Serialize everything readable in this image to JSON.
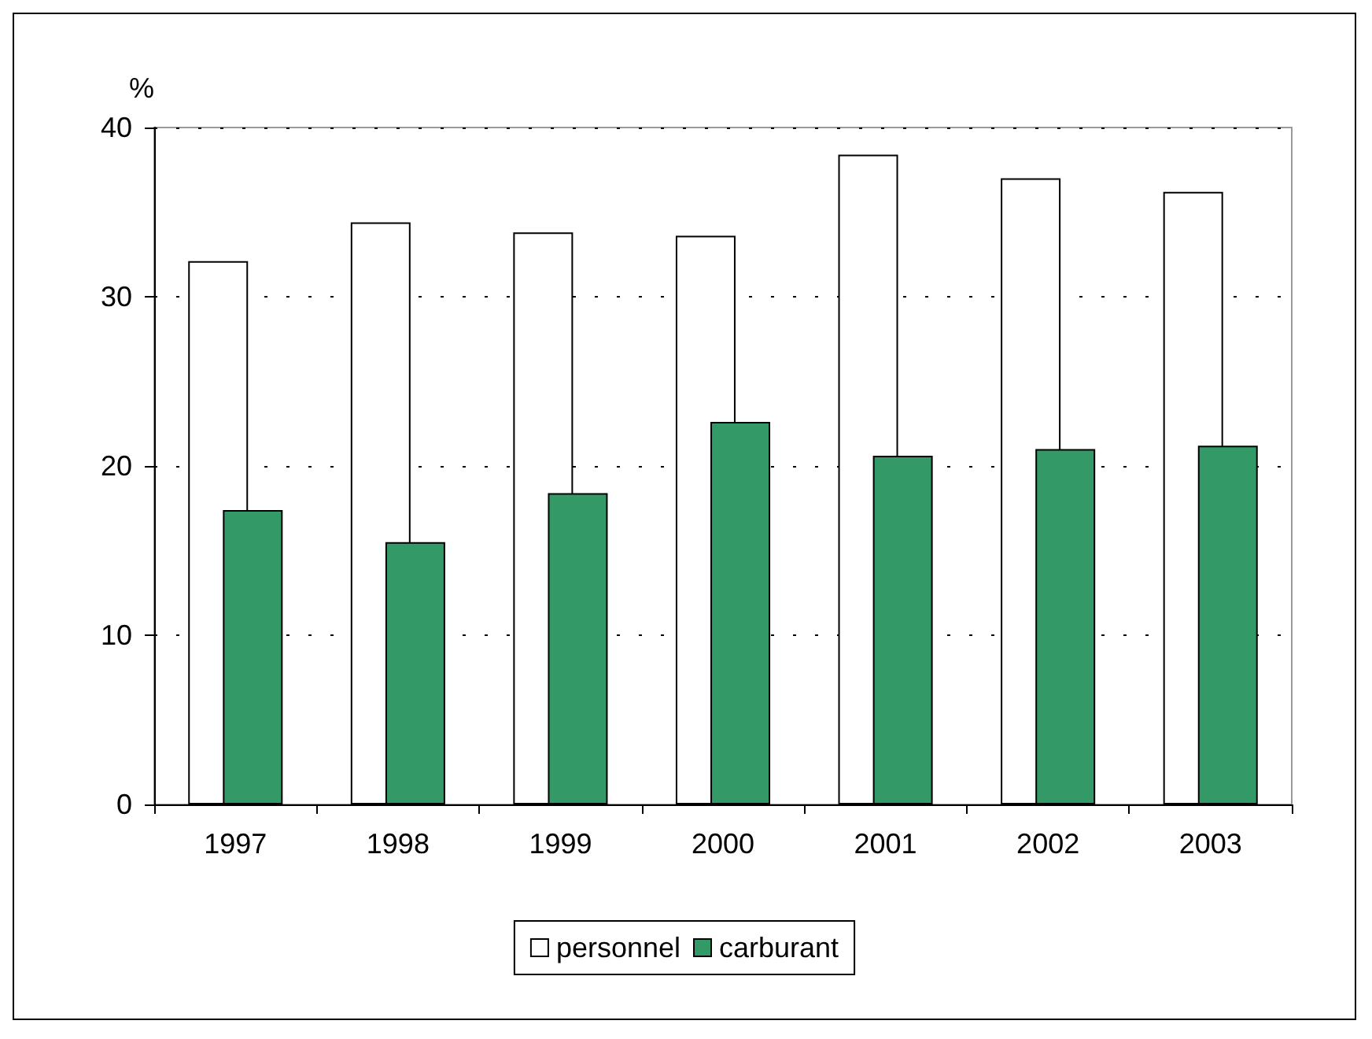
{
  "chart_data": {
    "type": "bar",
    "ylabel": "%",
    "categories": [
      "1997",
      "1998",
      "1999",
      "2000",
      "2001",
      "2002",
      "2003"
    ],
    "series": [
      {
        "name": "personnel",
        "color": "#ffffff",
        "values": [
          32.1,
          34.4,
          33.8,
          33.6,
          38.4,
          37.0,
          36.2
        ]
      },
      {
        "name": "carburant",
        "color": "#339966",
        "values": [
          17.4,
          15.5,
          18.4,
          22.6,
          20.6,
          21.0,
          21.2
        ]
      }
    ],
    "ylim": [
      0,
      40
    ],
    "yticks": [
      0,
      10,
      20,
      30,
      40
    ],
    "grid": "y",
    "legend": "bottom"
  }
}
